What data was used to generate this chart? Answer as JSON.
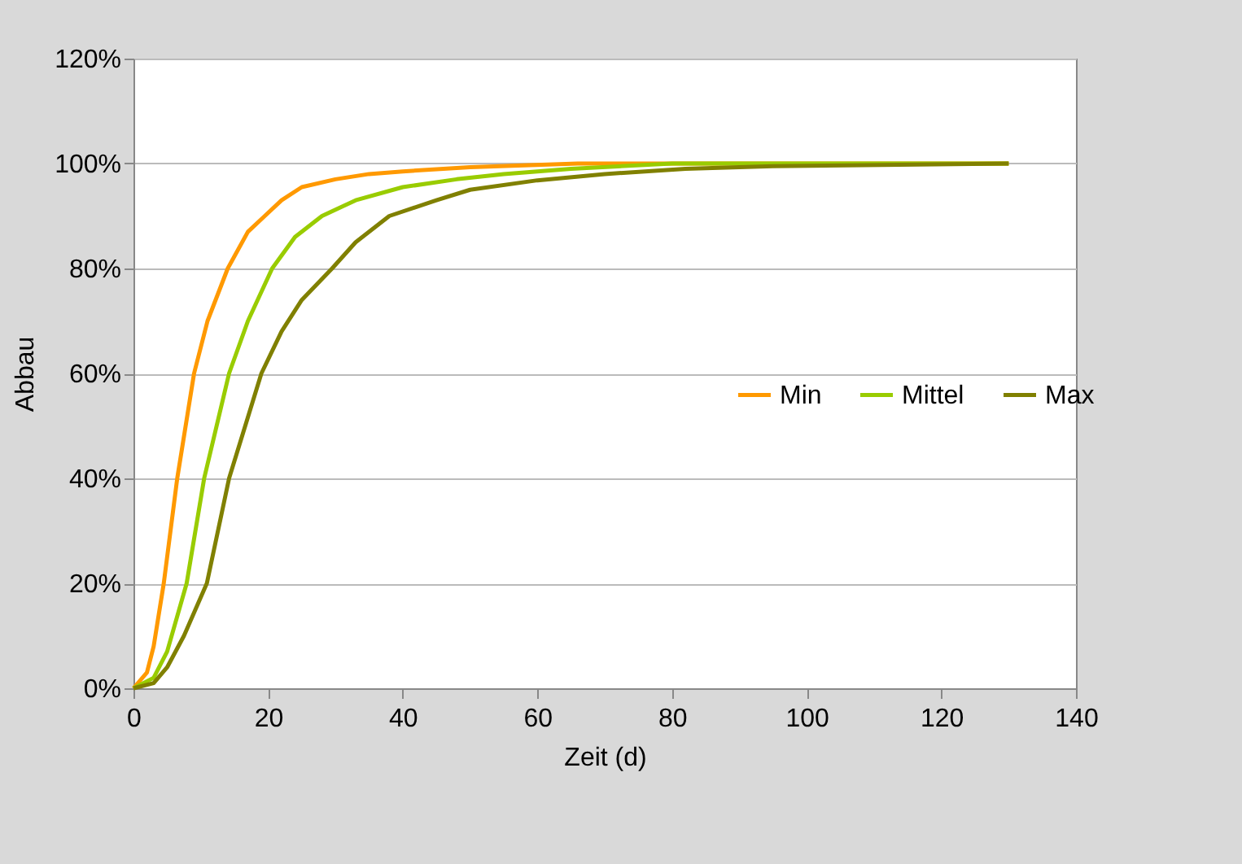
{
  "chart_data": {
    "type": "line",
    "xlabel": "Zeit (d)",
    "ylabel": "Abbau",
    "xlim": [
      0,
      140
    ],
    "xticks": [
      0,
      20,
      40,
      60,
      80,
      100,
      120,
      140
    ],
    "ylim": [
      0,
      120
    ],
    "yticks": [
      {
        "value": 0,
        "label": "0%"
      },
      {
        "value": 20,
        "label": "20%"
      },
      {
        "value": 40,
        "label": "40%"
      },
      {
        "value": 60,
        "label": "60%"
      },
      {
        "value": 80,
        "label": "80%"
      },
      {
        "value": 100,
        "label": "100%"
      },
      {
        "value": 120,
        "label": "120%"
      }
    ],
    "grid": "y",
    "legend": "right",
    "marker": "none",
    "line_style": "solid",
    "series": [
      {
        "name": "Min",
        "color": "#ff9900",
        "x": [
          0,
          2,
          3,
          4.5,
          6.5,
          9,
          11,
          14,
          17,
          19.5,
          22,
          25,
          30,
          35,
          40,
          50,
          66,
          130
        ],
        "values": [
          0,
          3,
          8,
          20,
          40,
          60,
          70,
          80,
          87,
          90,
          93,
          95.5,
          97,
          98,
          98.5,
          99.3,
          100,
          100
        ]
      },
      {
        "name": "Mittel",
        "color": "#99cc00",
        "x": [
          0,
          3,
          5,
          7.9,
          10.5,
          14.2,
          17,
          20.6,
          24,
          28,
          33,
          40,
          48,
          55,
          65,
          80,
          130
        ],
        "values": [
          0,
          2,
          7,
          20,
          40,
          60,
          70,
          80,
          86,
          90,
          93,
          95.5,
          97,
          98,
          99,
          100,
          100
        ]
      },
      {
        "name": "Max",
        "color": "#808000",
        "x": [
          0,
          3,
          5,
          7.5,
          10.9,
          14.2,
          19,
          22,
          25,
          29.5,
          33,
          38,
          45,
          50,
          60,
          70,
          82,
          95,
          130
        ],
        "values": [
          0,
          1,
          4,
          10,
          20,
          40,
          60,
          68,
          74,
          80,
          85,
          90,
          93,
          95,
          96.8,
          98,
          99,
          99.5,
          100
        ]
      }
    ]
  }
}
